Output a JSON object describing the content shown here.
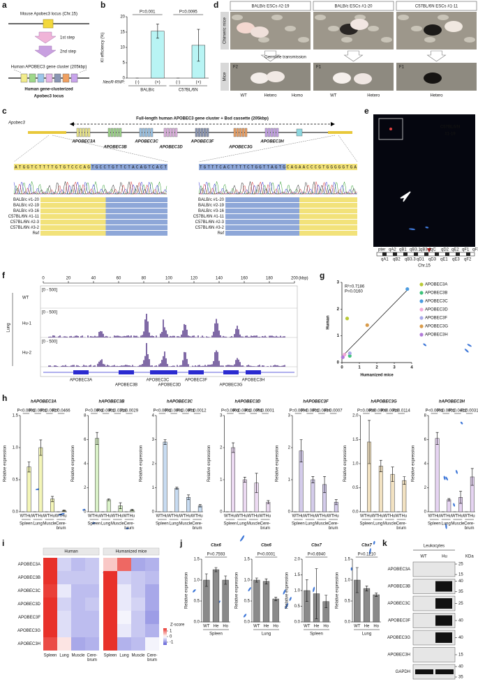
{
  "panels": {
    "a": {
      "label": "a",
      "locus": "Mouse Apobec3 locus (Chr.15)",
      "step1": "1st step",
      "step2": "2nd step",
      "cluster": "Human APOBEC3 gene cluster (205kbp)",
      "result": [
        "Human gene-clusterized",
        "Apobec3 locus"
      ]
    },
    "b": {
      "label": "b"
    },
    "d": {
      "label": "d",
      "columns": [
        "BALB/c ESCs #2-19",
        "BALB/c ESCs #1-20",
        "C57BL/6N ESCs #1-11"
      ],
      "row_labels": [
        "Chimeric mice",
        "Mice"
      ],
      "transmission": "Germline transmission",
      "generations": [
        "F2",
        "F1",
        "F1"
      ],
      "genotypes": [
        [
          "WT",
          "Hetero",
          "Homo"
        ],
        [
          "WT",
          "Hetero"
        ],
        [
          "Hetero"
        ]
      ]
    },
    "c": {
      "label": "c",
      "locus": "Apobec3",
      "title": "Full-length human APOBEC3 gene cluster + Bsd cassette (205kbp)",
      "genes": [
        "APOBEC3A",
        "APOBEC3B",
        "APOBEC3C",
        "APOBEC3D",
        "APOBEC3F",
        "APOBEC3G",
        "APOBEC3H"
      ],
      "seq_left": "ATGGTCTTTTGTGTCCCAGTGCCTGTTCTACAGTCACT",
      "seq_right": "TGTTTCACTTTTCTGGTTAGTGCAGAACCCGTGGGGGTGA",
      "samples": [
        "BALB/c #1-20",
        "BALB/c #2-19",
        "BALB/c #3-16",
        "C57BL/6N #1-11",
        "C57BL/6N #2-3",
        "C57BL/6N #3-2",
        "Ref"
      ]
    },
    "e": {
      "label": "e",
      "sample": [
        "C57BL6/N",
        "#1-19"
      ],
      "chromosome": "Chr.15",
      "bands_top": [
        "pter",
        "qA2",
        "qB1",
        "qB3.1",
        "qB3.2",
        "qC",
        "qD2",
        "qE2",
        "qF1",
        "qF3"
      ],
      "bands_bottom": [
        "qA1",
        "qB2",
        "qB3.3",
        "qD1",
        "qD3",
        "qE1",
        "qE3",
        "qF2"
      ]
    },
    "f": {
      "label": "f",
      "xticks": [
        0,
        20,
        40,
        60,
        80,
        100,
        120,
        140,
        160,
        180,
        200
      ],
      "unit": "(kbp)",
      "tissue": "Lung",
      "tracks": [
        "WT",
        "Hu-1",
        "Hu-2"
      ],
      "range": "[0 - 500]",
      "genes": [
        "APOBEC3A",
        "APOBEC3B",
        "APOBEC3C",
        "APOBEC3D",
        "APOBEC3F",
        "APOBEC3G",
        "APOBEC3H"
      ]
    },
    "g": {
      "label": "g"
    },
    "h": {
      "label": "h"
    },
    "i": {
      "label": "i",
      "colorbar_label": "Z-score",
      "colorbar_ticks": [
        1,
        0,
        -1
      ]
    },
    "j": {
      "label": "j"
    },
    "k": {
      "label": "k",
      "title": "Leukocytes",
      "lanes": [
        "WT",
        "Hu"
      ],
      "unit": "KDa",
      "proteins": [
        "APOBEC3A",
        "APOBEC3B",
        "APOBEC3C",
        "APOBEC3F",
        "APOBEC3G",
        "APOBEC3H",
        "GAPDH"
      ],
      "markers": [
        [
          25,
          15
        ],
        [
          40,
          35
        ],
        [
          25
        ],
        [
          40
        ],
        [
          40
        ],
        [
          15
        ],
        [
          40,
          35
        ]
      ]
    }
  },
  "chart_data": [
    {
      "type": "bar",
      "ylabel": "KI efficiency (%)",
      "row_label": "NeoR-RNP:",
      "categories": [
        "(-)",
        "(+)",
        "(-)",
        "(+)"
      ],
      "values": [
        0,
        15.3,
        0,
        10.7
      ],
      "errors": [
        0,
        2.3,
        0,
        5.2
      ],
      "groups": [
        [
          "BALB/c"
        ],
        [
          "C57BL/6N"
        ]
      ],
      "pvalues": [
        "P=0.001",
        "P=0.0095"
      ],
      "color": "#b8f4f4",
      "ylim": [
        0,
        20
      ],
      "yticks": [
        0,
        5,
        10,
        15,
        20
      ]
    },
    {
      "type": "scatter",
      "xlabel": "Humanized mice",
      "ylabel": "Human",
      "annotations": [
        "R²=0.7186",
        "P=0.0160"
      ],
      "xlim": [
        0,
        4
      ],
      "ylim": [
        0,
        3
      ],
      "xticks": [
        0,
        1,
        2,
        3,
        4
      ],
      "yticks": [
        0,
        1,
        2,
        3
      ],
      "legend": "right",
      "trendline": {
        "x": [
          0,
          3.8
        ],
        "values": [
          0.22,
          2.75
        ]
      },
      "series": [
        {
          "name": "APOBEC3A",
          "color": "#b9c935",
          "x": [
            0.3
          ],
          "values": [
            1.65
          ]
        },
        {
          "name": "APOBEC3B",
          "color": "#3dc27a",
          "x": [
            0.45
          ],
          "values": [
            0.25
          ]
        },
        {
          "name": "APOBEC3C",
          "color": "#4a9be0",
          "x": [
            3.75
          ],
          "values": [
            2.75
          ]
        },
        {
          "name": "APOBEC3D",
          "color": "#f2a9d9",
          "x": [
            0.15
          ],
          "values": [
            0.3
          ]
        },
        {
          "name": "APOBEC3F",
          "color": "#a9a9ea",
          "x": [
            0.45
          ],
          "values": [
            0.35
          ]
        },
        {
          "name": "APOBEC3G",
          "color": "#d99b4a",
          "x": [
            1.45
          ],
          "values": [
            1.4
          ]
        },
        {
          "name": "APOBEC3H",
          "color": "#b07ad8",
          "x": [
            0.05
          ],
          "values": [
            0.2
          ]
        }
      ]
    },
    {
      "type": "bar",
      "title": "hAPOBEC3A",
      "ylabel": "Relative expression",
      "categories": [
        "WT",
        "Hu",
        "WT",
        "Hu",
        "WT",
        "Hu",
        "WT",
        "Hu"
      ],
      "values": [
        0,
        0.7,
        0,
        1.0,
        0,
        0.2,
        0,
        0.02
      ],
      "errors": [
        0,
        0.08,
        0,
        0.12,
        0,
        0.04,
        0,
        0.01
      ],
      "groups": [
        [
          "Spleen"
        ],
        [
          "Lung"
        ],
        [
          "Muscle"
        ],
        [
          "Cere-",
          "brum"
        ]
      ],
      "pvalues": [
        "P<0.0001",
        "P<0.0001",
        "P=0.0027",
        "P=0.0466"
      ],
      "color": "#f4f6b8",
      "ylim": [
        0,
        1.5
      ],
      "yticks": [
        {
          "value": 0,
          "label": "0.0"
        },
        {
          "value": 0.5,
          "label": "0.5"
        },
        {
          "value": 1,
          "label": "1.0"
        },
        {
          "value": 1.5,
          "label": "1.5"
        }
      ]
    },
    {
      "type": "bar",
      "title": "hAPOBEC3B",
      "ylabel": "Relative expression",
      "categories": [
        "WT",
        "Hu",
        "WT",
        "Hu",
        "WT",
        "Hu",
        "WT",
        "Hu"
      ],
      "values": [
        0,
        6.1,
        0,
        1.0,
        0,
        0.5,
        0,
        0.15
      ],
      "errors": [
        0,
        0.5,
        0,
        0.08,
        0,
        0.25,
        0,
        0.05
      ],
      "groups": [
        [
          "Spleen"
        ],
        [
          "Lung"
        ],
        [
          "Muscle"
        ],
        [
          "Cere-",
          "brum"
        ]
      ],
      "pvalues": [
        "P<0.0001",
        "P<0.0001",
        "P=0.0318",
        "P=0.0029"
      ],
      "color": "#daf2c8",
      "ylim": [
        0,
        8
      ],
      "yticks": [
        0,
        2,
        4,
        6,
        8
      ]
    },
    {
      "type": "bar",
      "title": "hAPOBEC3C",
      "ylabel": "Relative expression",
      "categories": [
        "WT",
        "Hu",
        "WT",
        "Hu",
        "WT",
        "Hu",
        "WT",
        "Hu"
      ],
      "values": [
        0,
        2.9,
        0,
        0.98,
        0,
        0.6,
        0,
        0.25
      ],
      "errors": [
        0,
        0.1,
        0,
        0.04,
        0,
        0.1,
        0,
        0.05
      ],
      "groups": [
        [
          "Spleen"
        ],
        [
          "Lung"
        ],
        [
          "Muscle"
        ],
        [
          "Cere-",
          "brum"
        ]
      ],
      "pvalues": [
        "P<0.0001",
        "P<0.0001",
        "P<0.0001",
        "P=0.0012"
      ],
      "color": "#c8dcf2",
      "ylim": [
        0,
        4
      ],
      "yticks": [
        0,
        1,
        2,
        3,
        4
      ]
    },
    {
      "type": "bar",
      "title": "hAPOBEC3D",
      "ylabel": "Relative expression",
      "categories": [
        "WT",
        "Hu",
        "WT",
        "Hu",
        "WT",
        "Hu",
        "WT",
        "Hu"
      ],
      "values": [
        0,
        2.0,
        0,
        1.0,
        0,
        0.9,
        0,
        0.3
      ],
      "errors": [
        0,
        0.15,
        0,
        0.08,
        0,
        0.3,
        0,
        0.05
      ],
      "groups": [
        [
          "Spleen"
        ],
        [
          "Lung"
        ],
        [
          "Muscle"
        ],
        [
          "Cere-",
          "brum"
        ]
      ],
      "pvalues": [
        "P<0.0001",
        "P<0.0001",
        "P=0.0051",
        "P<0.0001"
      ],
      "color": "#ecdaf2",
      "ylim": [
        0,
        3
      ],
      "yticks": [
        0,
        1,
        2,
        3
      ]
    },
    {
      "type": "bar",
      "title": "hAPOBEC3F",
      "ylabel": "Relative expression",
      "categories": [
        "WT",
        "Hu",
        "WT",
        "Hu",
        "WT",
        "Hu",
        "WT",
        "Hu"
      ],
      "values": [
        0,
        1.9,
        0,
        1.0,
        0,
        0.85,
        0,
        0.3
      ],
      "errors": [
        0,
        0.35,
        0,
        0.1,
        0,
        0.25,
        0,
        0.08
      ],
      "groups": [
        [
          "Spleen"
        ],
        [
          "Lung"
        ],
        [
          "Muscle"
        ],
        [
          "Cere-",
          "brum"
        ]
      ],
      "pvalues": [
        "P=0.0004",
        "P<0.0001",
        "P=0.0034",
        "P=0.0007"
      ],
      "color": "#d4cceb",
      "ylim": [
        0,
        3
      ],
      "yticks": [
        0,
        1,
        2,
        3
      ]
    },
    {
      "type": "bar",
      "title": "hAPOBEC3G",
      "ylabel": "Relative expression",
      "categories": [
        "WT",
        "Hu",
        "WT",
        "Hu",
        "WT",
        "Hu",
        "WT",
        "Hu"
      ],
      "values": [
        0,
        1.45,
        0,
        0.95,
        0,
        0.78,
        0,
        0.65
      ],
      "errors": [
        0,
        0.45,
        0,
        0.12,
        0,
        0.15,
        0,
        0.08
      ],
      "groups": [
        [
          "Spleen"
        ],
        [
          "Lung"
        ],
        [
          "Muscle"
        ],
        [
          "Cere-",
          "brum"
        ]
      ],
      "pvalues": [
        "P=0.0069",
        "P=0.0009",
        "P=0.0019",
        "P=0.0114"
      ],
      "color": "#f2e2c2",
      "ylim": [
        0,
        2
      ],
      "yticks": [
        {
          "value": 0,
          "label": "0.0"
        },
        {
          "value": 0.5,
          "label": "0.5"
        },
        {
          "value": 1,
          "label": "1.0"
        },
        {
          "value": 1.5,
          "label": "1.5"
        },
        {
          "value": 2,
          "label": "2.0"
        }
      ]
    },
    {
      "type": "bar",
      "title": "hAPOBEC3H",
      "ylabel": "Relative expression",
      "categories": [
        "WT",
        "Hu",
        "WT",
        "Hu",
        "WT",
        "Hu",
        "WT",
        "Hu"
      ],
      "values": [
        0,
        6.1,
        0,
        1.0,
        0,
        1.2,
        0,
        2.9
      ],
      "errors": [
        0,
        0.5,
        0,
        0.1,
        0,
        0.5,
        0,
        0.7
      ],
      "groups": [
        [
          "Spleen"
        ],
        [
          "Lung"
        ],
        [
          "Muscle"
        ],
        [
          "Cere-",
          "brum"
        ]
      ],
      "pvalues": [
        "P<0.0001",
        "P<0.0001",
        "P=0.0422",
        "P=0.0031"
      ],
      "color": "#e6d4f2",
      "ylim": [
        0,
        8
      ],
      "yticks": [
        0,
        2,
        4,
        6,
        8
      ]
    },
    {
      "type": "bar",
      "title": "Cbx6",
      "ylabel": "Relative expression",
      "categories": [
        "WT",
        "He",
        "Ho"
      ],
      "values": [
        1.0,
        1.25,
        1.0
      ],
      "errors": [
        0.15,
        0.05,
        0.1
      ],
      "groups": [
        [
          "Spleen"
        ]
      ],
      "pvalues": [
        "P=0.7593"
      ],
      "color": "#8a8a8a",
      "ylim": [
        0,
        1.5
      ],
      "yticks": [
        {
          "value": 0,
          "label": "0.0"
        },
        {
          "value": 0.5,
          "label": "0.5"
        },
        {
          "value": 1,
          "label": "1.0"
        },
        {
          "value": 1.5,
          "label": "1.5"
        }
      ]
    },
    {
      "type": "bar",
      "title": "Cbx6",
      "ylabel": "Relative expression",
      "categories": [
        "WT",
        "He",
        "Ho"
      ],
      "values": [
        1.0,
        0.97,
        0.55
      ],
      "errors": [
        0.05,
        0.06,
        0.04
      ],
      "groups": [
        [
          "Lung"
        ]
      ],
      "pvalues": [
        "P<0.0001"
      ],
      "color": "#8a8a8a",
      "ylim": [
        0,
        1.5
      ],
      "yticks": [
        {
          "value": 0,
          "label": "0.0"
        },
        {
          "value": 0.5,
          "label": "0.5"
        },
        {
          "value": 1,
          "label": "1.0"
        },
        {
          "value": 1.5,
          "label": "1.5"
        }
      ]
    },
    {
      "type": "bar",
      "title": "Cbx7",
      "ylabel": "Relative expression",
      "categories": [
        "WT",
        "He",
        "Ho"
      ],
      "values": [
        1.0,
        0.9,
        0.65
      ],
      "errors": [
        0.35,
        0.8,
        0.2
      ],
      "groups": [
        [
          "Spleen"
        ]
      ],
      "pvalues": [
        "P=0.6940"
      ],
      "color": "#8a8a8a",
      "ylim": [
        0,
        2
      ],
      "yticks": [
        {
          "value": 0,
          "label": "0.0"
        },
        {
          "value": 0.5,
          "label": "0.5"
        },
        {
          "value": 1,
          "label": "1.0"
        },
        {
          "value": 1.5,
          "label": "1.5"
        },
        {
          "value": 2,
          "label": "2.0"
        }
      ]
    },
    {
      "type": "bar",
      "title": "Cbx7",
      "ylabel": "Relative expression",
      "categories": [
        "WT",
        "He",
        "Ho"
      ],
      "values": [
        1.0,
        0.8,
        0.65
      ],
      "errors": [
        0.3,
        0.06,
        0.04
      ],
      "groups": [
        [
          "Lung"
        ]
      ],
      "pvalues": [
        "P=0.1210"
      ],
      "color": "#8a8a8a",
      "ylim": [
        0,
        1.5
      ],
      "yticks": [
        {
          "value": 0,
          "label": "0.0"
        },
        {
          "value": 0.5,
          "label": "0.5"
        },
        {
          "value": 1,
          "label": "1.0"
        },
        {
          "value": 1.5,
          "label": "1.5"
        }
      ]
    },
    {
      "type": "heatmap",
      "groups": [
        "Human",
        "Humanized mice"
      ],
      "columns": [
        [
          "Spleen"
        ],
        [
          "Lung"
        ],
        [
          "Muscle"
        ],
        [
          "Cere-",
          "brum"
        ]
      ],
      "rows": [
        "APOBEC3A",
        "APOBEC3B",
        "APOBEC3C",
        "APOBEC3D",
        "APOBEC3F",
        "APOBEC3G",
        "APOBEC3H"
      ],
      "values": [
        [
          1.5,
          -0.4,
          -0.6,
          -0.5,
          0.4,
          1.1,
          -0.8,
          -0.7
        ],
        [
          1.5,
          -0.5,
          -0.5,
          -0.5,
          1.5,
          -0.4,
          -0.5,
          -0.6
        ],
        [
          1.4,
          -0.2,
          -0.6,
          -0.6,
          1.5,
          -0.2,
          -0.5,
          -0.8
        ],
        [
          1.5,
          -0.4,
          -0.6,
          -0.5,
          1.5,
          -0.2,
          -0.4,
          -0.8
        ],
        [
          1.5,
          -0.3,
          -0.6,
          -0.6,
          1.5,
          -0.1,
          -0.5,
          -0.9
        ],
        [
          1.5,
          -0.3,
          -0.6,
          -0.6,
          1.5,
          -0.2,
          -0.5,
          -0.7
        ],
        [
          1.3,
          0.2,
          -0.8,
          -0.7,
          1.5,
          -0.7,
          -0.6,
          -0.1
        ]
      ]
    }
  ]
}
